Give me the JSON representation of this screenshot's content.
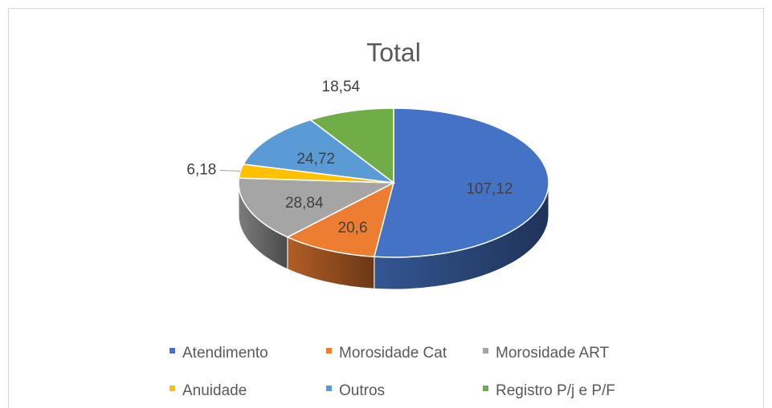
{
  "chart_data": {
    "type": "pie3d",
    "title": "Total",
    "categories": [
      "Atendimento",
      "Morosidade Cat",
      "Morosidade ART",
      "Anuidade",
      "Outros",
      "Registro P/j e P/F"
    ],
    "values": [
      107.12,
      20.6,
      28.84,
      6.18,
      24.72,
      18.54
    ],
    "value_labels": [
      "107,12",
      "20,6",
      "28,84",
      "6,18",
      "24,72",
      "18,54"
    ],
    "colors": [
      "#4472c4",
      "#ed7d31",
      "#a5a5a5",
      "#ffc000",
      "#5b9bd5",
      "#70ad47"
    ]
  }
}
